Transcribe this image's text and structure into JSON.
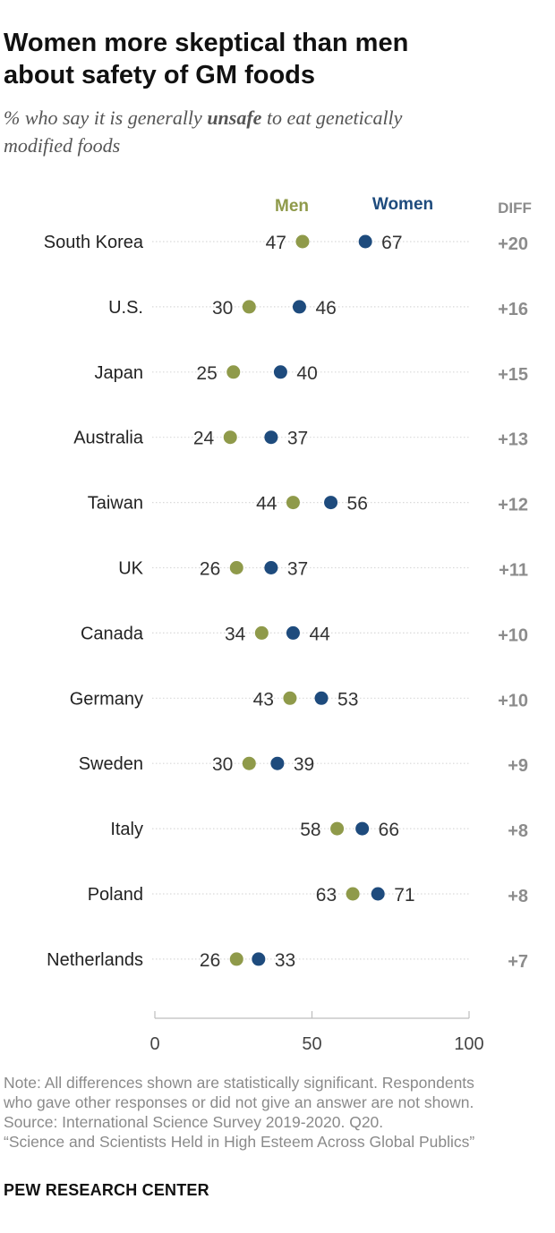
{
  "title_line1": "Women more skeptical than men",
  "title_line2": "about safety of GM foods",
  "subtitle_pre": "% who say it is generally ",
  "subtitle_em": "unsafe",
  "subtitle_post": " to eat genetically",
  "subtitle_line2": "modified foods",
  "notes": [
    "Note: All differences shown are statistically significant. Respondents",
    "who gave other responses or did not give an answer are not shown.",
    "Source: International Science Survey 2019-2020. Q20.",
    "“Science and Scientists Held in High Esteem Across Global Publics”"
  ],
  "brand": "PEW RESEARCH CENTER",
  "colors": {
    "men": "#8f9a4a",
    "women": "#1e4b7d",
    "diff": "#8c8c8c",
    "dotline": "#d9d9d9"
  },
  "chart_data": {
    "type": "dot-plot",
    "series": [
      {
        "name": "Men",
        "color": "#8f9a4a"
      },
      {
        "name": "Women",
        "color": "#1e4b7d"
      }
    ],
    "diff_header": "DIFF",
    "categories": [
      "South Korea",
      "U.S.",
      "Japan",
      "Australia",
      "Taiwan",
      "UK",
      "Canada",
      "Germany",
      "Sweden",
      "Italy",
      "Poland",
      "Netherlands"
    ],
    "men": [
      47,
      30,
      25,
      24,
      44,
      26,
      34,
      43,
      30,
      58,
      63,
      26
    ],
    "women": [
      67,
      46,
      40,
      37,
      56,
      37,
      44,
      53,
      39,
      66,
      71,
      33
    ],
    "diff": [
      "+20",
      "+16",
      "+15",
      "+13",
      "+12",
      "+11",
      "+10",
      "+10",
      "+9",
      "+8",
      "+8",
      "+7"
    ],
    "xlim": [
      0,
      100
    ],
    "xticks": [
      0,
      50,
      100
    ]
  }
}
